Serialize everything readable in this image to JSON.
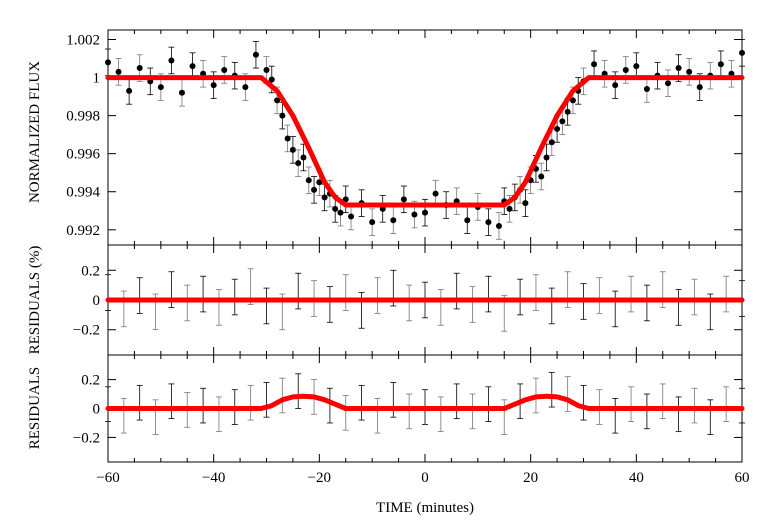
{
  "chart_data": [
    {
      "panel": "top",
      "type": "scatter",
      "xlabel": "",
      "ylabel": "NORMALIZED FLUX",
      "xlim": [
        -60,
        60
      ],
      "ylim": [
        0.9912,
        1.0025
      ],
      "yticks": [
        "0.992",
        "0.994",
        "0.996",
        "0.998",
        "1",
        "1.002"
      ],
      "observations": {
        "x": [
          -60,
          -58,
          -56,
          -54,
          -52,
          -50,
          -48,
          -46,
          -44,
          -42,
          -40,
          -38,
          -36,
          -34,
          -32,
          -30,
          -29,
          -28,
          -27,
          -26,
          -25,
          -24,
          -23,
          -22,
          -21,
          -20,
          -19,
          -18,
          -17,
          -16,
          -15,
          -14,
          -12,
          -10,
          -8,
          -6,
          -4,
          -2,
          0,
          2,
          4,
          6,
          8,
          10,
          12,
          14,
          15,
          16,
          17,
          18,
          19,
          20,
          21,
          22,
          23,
          24,
          25,
          26,
          27,
          28,
          29,
          30,
          32,
          34,
          36,
          38,
          40,
          42,
          44,
          46,
          48,
          50,
          52,
          54,
          56,
          58,
          60
        ],
        "y": [
          1.0008,
          1.0003,
          0.9993,
          1.0005,
          0.9998,
          0.9995,
          1.0009,
          0.9992,
          1.0006,
          1.0002,
          0.9996,
          1.0004,
          1.0001,
          0.9995,
          1.0012,
          1.0004,
          0.9999,
          0.9988,
          0.998,
          0.9968,
          0.9962,
          0.9955,
          0.9958,
          0.9946,
          0.9941,
          0.9945,
          0.9937,
          0.9939,
          0.9931,
          0.9929,
          0.9936,
          0.9927,
          0.9934,
          0.9924,
          0.9931,
          0.9925,
          0.9936,
          0.9928,
          0.9929,
          0.9939,
          0.9933,
          0.9935,
          0.9925,
          0.9932,
          0.9924,
          0.9922,
          0.9935,
          0.9931,
          0.9937,
          0.9941,
          0.9934,
          0.9946,
          0.9952,
          0.9948,
          0.9958,
          0.9966,
          0.9973,
          0.9977,
          0.9982,
          0.9988,
          0.9993,
          0.9998,
          1.0007,
          1.0002,
          0.9996,
          1.0004,
          1.0006,
          0.9994,
          1.0001,
          0.9997,
          1.0005,
          1.0003,
          0.9995,
          1.0001,
          1.0007,
          1.0002,
          1.0013
        ],
        "err": 0.0007
      },
      "model": {
        "name": "",
        "color": "#ff0000",
        "x": [
          -60,
          -31,
          -28,
          -25,
          -22,
          -19,
          -17,
          -15,
          15,
          17,
          19,
          22,
          25,
          28,
          31,
          60
        ],
        "y": [
          1.0,
          1.0,
          0.9993,
          0.998,
          0.9963,
          0.9945,
          0.9937,
          0.9933,
          0.9933,
          0.9937,
          0.9945,
          0.9963,
          0.998,
          0.9993,
          1.0,
          1.0
        ]
      }
    },
    {
      "panel": "middle",
      "type": "scatter",
      "xlabel": "",
      "ylabel": "RESIDUALS (%)",
      "xlim": [
        -60,
        60
      ],
      "ylim": [
        -0.37,
        0.37
      ],
      "yticks": [
        "-0.2",
        "0",
        "0.2"
      ],
      "observations": {
        "x": [
          -60,
          -57,
          -54,
          -51,
          -48,
          -45,
          -42,
          -39,
          -36,
          -33,
          -30,
          -27,
          -24,
          -21,
          -18,
          -15,
          -12,
          -9,
          -6,
          -3,
          0,
          3,
          6,
          9,
          12,
          15,
          18,
          21,
          24,
          27,
          30,
          33,
          36,
          39,
          42,
          45,
          48,
          51,
          54,
          57,
          60
        ],
        "y": [
          0.05,
          -0.06,
          0.03,
          -0.08,
          0.07,
          -0.02,
          0.04,
          -0.05,
          0.02,
          0.09,
          -0.04,
          -0.08,
          0.06,
          0.01,
          -0.03,
          0.05,
          -0.07,
          0.03,
          0.08,
          -0.02,
          0.0,
          -0.05,
          0.06,
          -0.03,
          0.04,
          -0.09,
          0.02,
          0.05,
          -0.04,
          0.07,
          -0.01,
          0.03,
          -0.06,
          0.04,
          -0.02,
          0.07,
          -0.05,
          0.02,
          -0.08,
          0.04,
          0.01
        ],
        "err": 0.12
      },
      "model": {
        "name": "",
        "color": "#ff0000",
        "x": [
          -60,
          60
        ],
        "y": [
          0,
          0
        ]
      }
    },
    {
      "panel": "bottom",
      "type": "scatter",
      "xlabel": "TIME (minutes)",
      "ylabel": "RESIDUALS",
      "xlim": [
        -60,
        60
      ],
      "ylim": [
        -0.37,
        0.37
      ],
      "yticks": [
        "-0.2",
        "0",
        "0.2"
      ],
      "xticks": [
        "-60",
        "-40",
        "-20",
        "0",
        "20",
        "40",
        "60"
      ],
      "observations": {
        "x": [
          -60,
          -57,
          -54,
          -51,
          -48,
          -45,
          -42,
          -39,
          -36,
          -33,
          -30,
          -27,
          -24,
          -21,
          -18,
          -15,
          -12,
          -9,
          -6,
          -3,
          0,
          3,
          6,
          9,
          12,
          15,
          18,
          21,
          24,
          27,
          30,
          33,
          36,
          39,
          42,
          45,
          48,
          51,
          54,
          57,
          60
        ],
        "y": [
          0.03,
          -0.05,
          0.04,
          -0.06,
          0.05,
          -0.01,
          0.02,
          -0.04,
          0.01,
          0.04,
          0.06,
          0.09,
          0.12,
          0.08,
          0.02,
          -0.03,
          0.04,
          -0.05,
          0.06,
          -0.02,
          0.01,
          -0.04,
          0.05,
          -0.02,
          0.03,
          -0.06,
          0.05,
          0.09,
          0.13,
          0.1,
          0.04,
          0.01,
          -0.05,
          0.03,
          -0.02,
          0.05,
          -0.04,
          0.02,
          -0.06,
          0.03,
          0.02
        ],
        "err": 0.12
      },
      "model": {
        "name": "",
        "color": "#ff0000",
        "x": [
          -60,
          -31,
          -29,
          -27,
          -25,
          -23,
          -21,
          -19,
          -17,
          -15,
          15,
          17,
          19,
          21,
          23,
          25,
          27,
          29,
          31,
          33,
          60
        ],
        "y": [
          0,
          0,
          0.02,
          0.06,
          0.08,
          0.085,
          0.08,
          0.06,
          0.03,
          0,
          0,
          0.03,
          0.06,
          0.08,
          0.085,
          0.08,
          0.06,
          0.02,
          0,
          0,
          0
        ]
      }
    }
  ]
}
